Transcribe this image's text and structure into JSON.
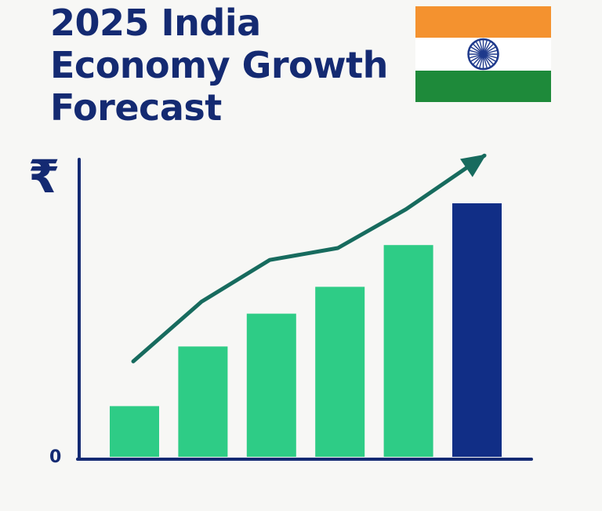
{
  "title_lines": [
    "2025 India",
    "Economy Growth",
    "Forecast"
  ],
  "flag": {
    "icon": "india-flag-icon",
    "colors": {
      "saffron": "#f4922f",
      "white": "#ffffff",
      "green": "#1e8a3a",
      "chakra": "#1f3a8c"
    }
  },
  "colors": {
    "title": "#142a72",
    "axis": "#142a72",
    "bar_green": "#2ecc86",
    "bar_highlight": "#112e86",
    "trend": "#176b5e"
  },
  "chart_data": {
    "type": "bar",
    "title": "2025 India Economy Growth Forecast",
    "y_axis_symbol": "₹",
    "y_tick_labels": [
      "0"
    ],
    "ylim": [
      0,
      100
    ],
    "values": [
      17,
      37,
      48,
      57,
      71,
      85
    ],
    "highlight_index": 5,
    "trend_line": {
      "values": [
        32,
        52,
        66,
        70,
        83,
        101
      ],
      "arrow": true
    },
    "grid": false,
    "legend": "none"
  }
}
